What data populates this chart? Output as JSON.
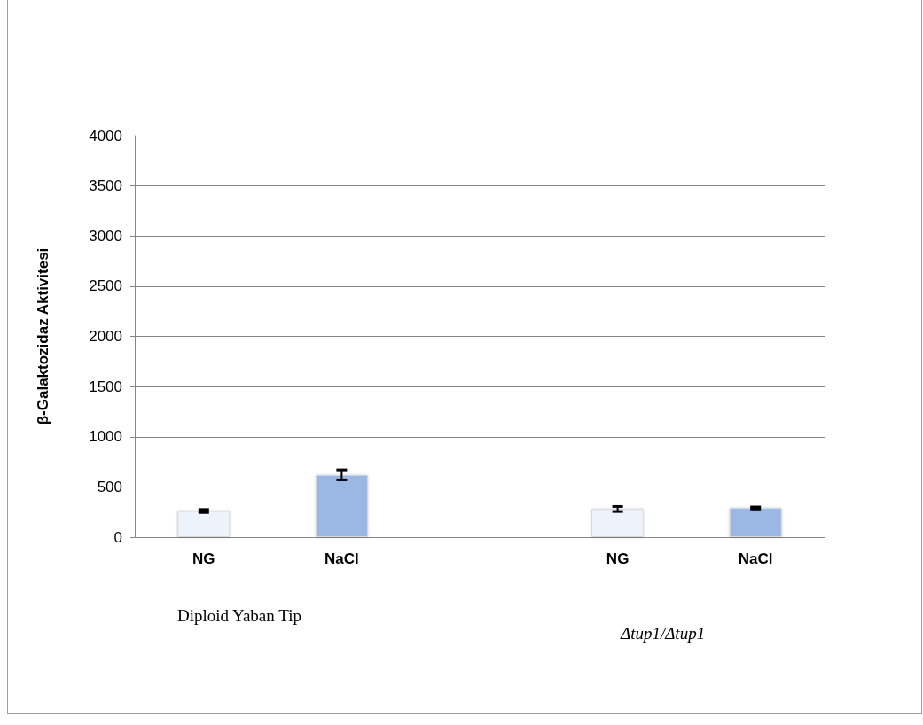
{
  "chart_data": {
    "type": "bar",
    "ylabel": "β-Galaktozidaz Aktivitesi",
    "categories": [
      "NG",
      "NaCl",
      null,
      "NG",
      "NaCl"
    ],
    "values": [
      260,
      620,
      null,
      280,
      290
    ],
    "errors": [
      15,
      50,
      null,
      25,
      10
    ],
    "colors": [
      "#eef3fb",
      "#9bb7e3",
      "#9bb7e3",
      "#eef3fb",
      "#9bb7e3"
    ],
    "ylim": [
      0,
      4000
    ],
    "yticks": [
      0,
      500,
      1000,
      1500,
      2000,
      2500,
      3000,
      3500,
      4000
    ],
    "grid": "y",
    "annotations": [
      "Diploid Yaban Tip",
      "Δtup1/Δtup1"
    ]
  }
}
